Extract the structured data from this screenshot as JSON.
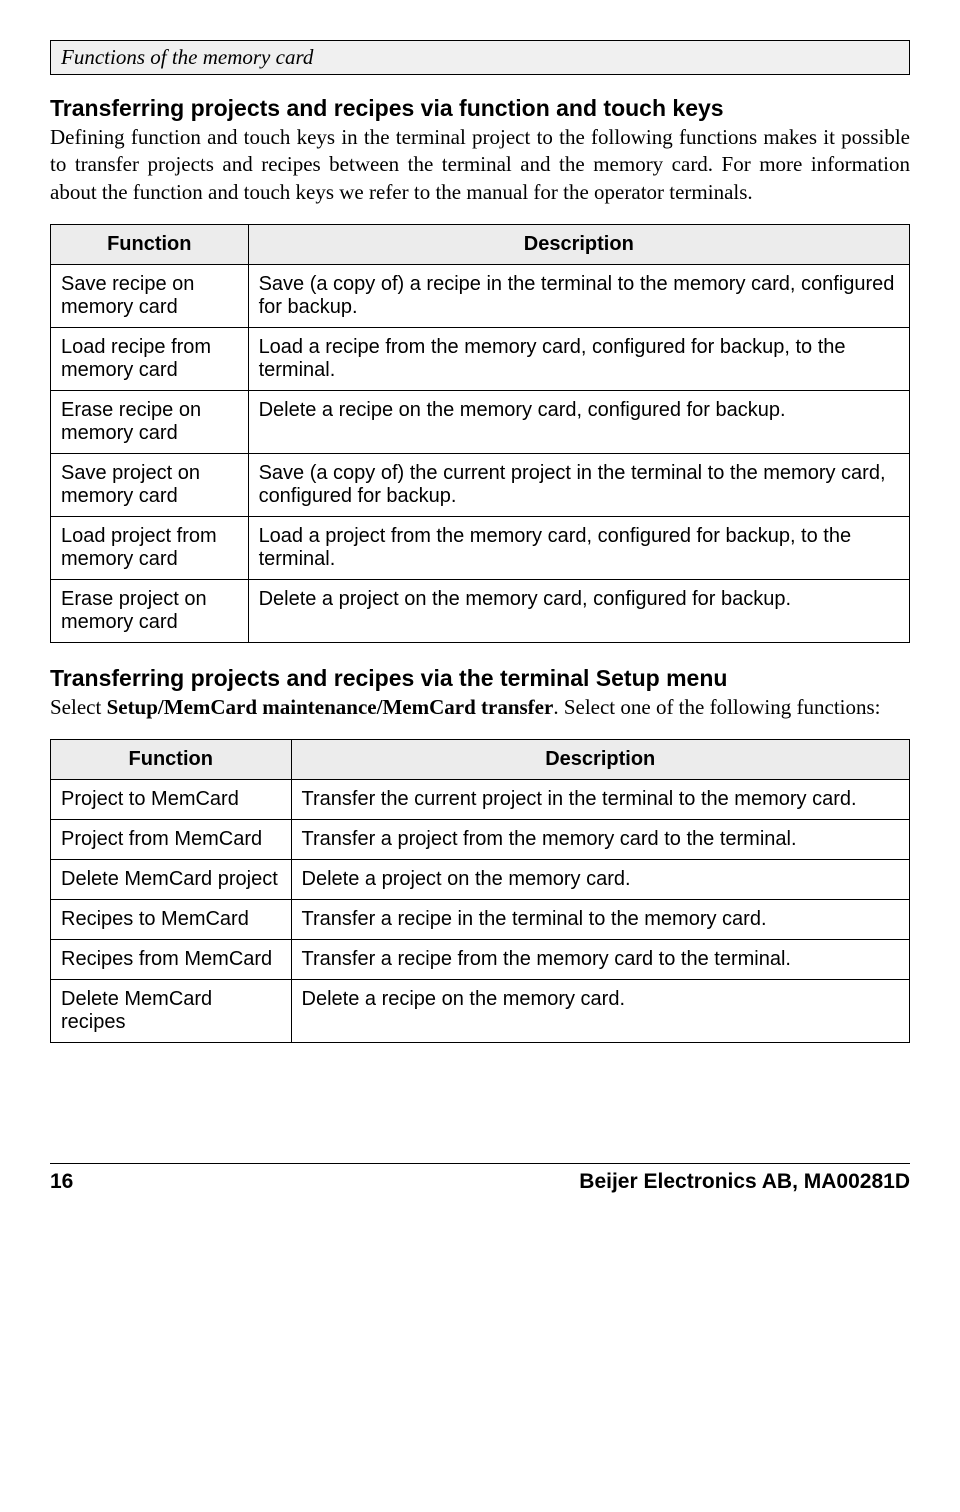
{
  "header": {
    "title": "Functions of the memory card"
  },
  "section1": {
    "heading": "Transferring projects and recipes via function and touch keys",
    "body": "Defining function and touch keys in the terminal project to the following functions makes it possible to transfer projects and recipes between the terminal and the memory card. For more information about the function and touch keys we refer to the manual for the operator terminals."
  },
  "table1": {
    "col_function": "Function",
    "col_description": "Description",
    "rows": [
      {
        "f": "Save recipe on memory card",
        "d": "Save (a copy of) a recipe in the terminal to the memory card, configured for backup."
      },
      {
        "f": "Load recipe from memory card",
        "d": "Load a recipe from the memory card, configured for backup, to the terminal."
      },
      {
        "f": "Erase recipe on memory card",
        "d": "Delete a recipe on the memory card, configured for backup."
      },
      {
        "f": "Save project on memory card",
        "d": "Save (a copy of) the current project in the terminal to the memory card, configured for backup."
      },
      {
        "f": "Load project from memory card",
        "d": "Load a project from the memory card, configured for backup, to the terminal."
      },
      {
        "f": "Erase project on memory card",
        "d": "Delete a project on the memory card, configured for backup."
      }
    ]
  },
  "section2": {
    "heading": "Transferring projects and recipes via the terminal Setup menu",
    "body_pre": "Select ",
    "body_bold": "Setup/MemCard maintenance/MemCard transfer",
    "body_post": ". Select one of the following functions:"
  },
  "table2": {
    "col_function": "Function",
    "col_description": "Description",
    "rows": [
      {
        "f": "Project to MemCard",
        "d": "Transfer the current project in the terminal to the memory card."
      },
      {
        "f": "Project from MemCard",
        "d": "Transfer a project from the memory card to the terminal."
      },
      {
        "f": "Delete MemCard project",
        "d": "Delete a project on the memory card."
      },
      {
        "f": "Recipes to MemCard",
        "d": "Transfer a recipe in the terminal to the memory card."
      },
      {
        "f": "Recipes from MemCard",
        "d": "Transfer a recipe from the memory card to the terminal."
      },
      {
        "f": "Delete MemCard recipes",
        "d": "Delete a recipe on the memory card."
      }
    ]
  },
  "footer": {
    "page": "16",
    "docid": "Beijer Electronics AB, MA00281D"
  }
}
